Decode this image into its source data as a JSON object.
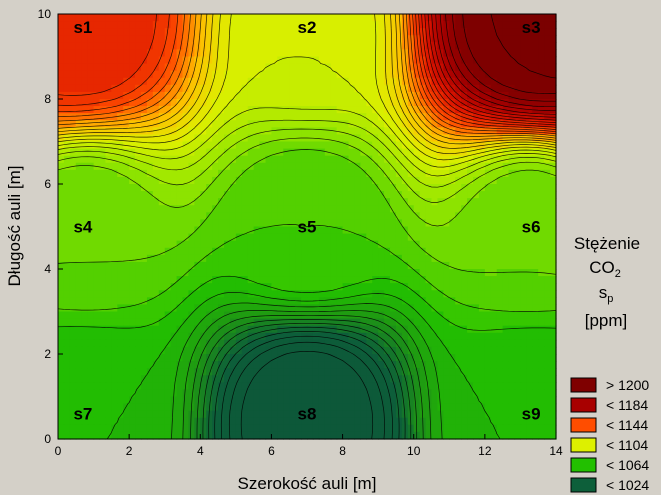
{
  "chart_data": {
    "type": "heatmap",
    "xlabel": "Szerokość auli [m]",
    "ylabel": "Długość auli [m]",
    "xlim": [
      0,
      14
    ],
    "ylim": [
      0,
      10
    ],
    "xticks": [
      0,
      2,
      4,
      6,
      8,
      10,
      12,
      14
    ],
    "yticks": [
      0,
      2,
      4,
      6,
      8,
      10
    ],
    "grid": false,
    "legend": {
      "placement": "right",
      "title_line1": "Stężenie",
      "title_line2_main": "CO",
      "title_line2_sub": "2",
      "title_line3_main": "s",
      "title_line3_sub": "p",
      "title_line4": "[ppm]",
      "entries": [
        {
          "label": "> 1200",
          "color": "#7f0000"
        },
        {
          "label": "< 1184",
          "color": "#a80000"
        },
        {
          "label": "< 1144",
          "color": "#ff4d00"
        },
        {
          "label": "< 1104",
          "color": "#ddf000"
        },
        {
          "label": "< 1064",
          "color": "#22c000"
        },
        {
          "label": "< 1024",
          "color": "#0d5f3a"
        }
      ]
    },
    "stations": [
      {
        "name": "s1",
        "x": 0.7,
        "y": 9.7,
        "value": 1160
      },
      {
        "name": "s2",
        "x": 7.0,
        "y": 9.7,
        "value": 1100
      },
      {
        "name": "s3",
        "x": 13.3,
        "y": 9.7,
        "value": 1205
      },
      {
        "name": "s4",
        "x": 0.7,
        "y": 5.0,
        "value": 1075
      },
      {
        "name": "s5",
        "x": 7.0,
        "y": 5.0,
        "value": 1070
      },
      {
        "name": "s6",
        "x": 13.3,
        "y": 5.0,
        "value": 1075
      },
      {
        "name": "s7",
        "x": 0.7,
        "y": 0.6,
        "value": 1060
      },
      {
        "name": "s8",
        "x": 7.0,
        "y": 0.6,
        "value": 1005
      },
      {
        "name": "s9",
        "x": 13.3,
        "y": 0.6,
        "value": 1060
      }
    ],
    "corners": [
      {
        "x": 0,
        "y": 10,
        "value": 1160
      },
      {
        "x": 14,
        "y": 10,
        "value": 1210
      },
      {
        "x": 0,
        "y": 0,
        "value": 1060
      },
      {
        "x": 14,
        "y": 0,
        "value": 1060
      }
    ],
    "contour_step": 5
  }
}
